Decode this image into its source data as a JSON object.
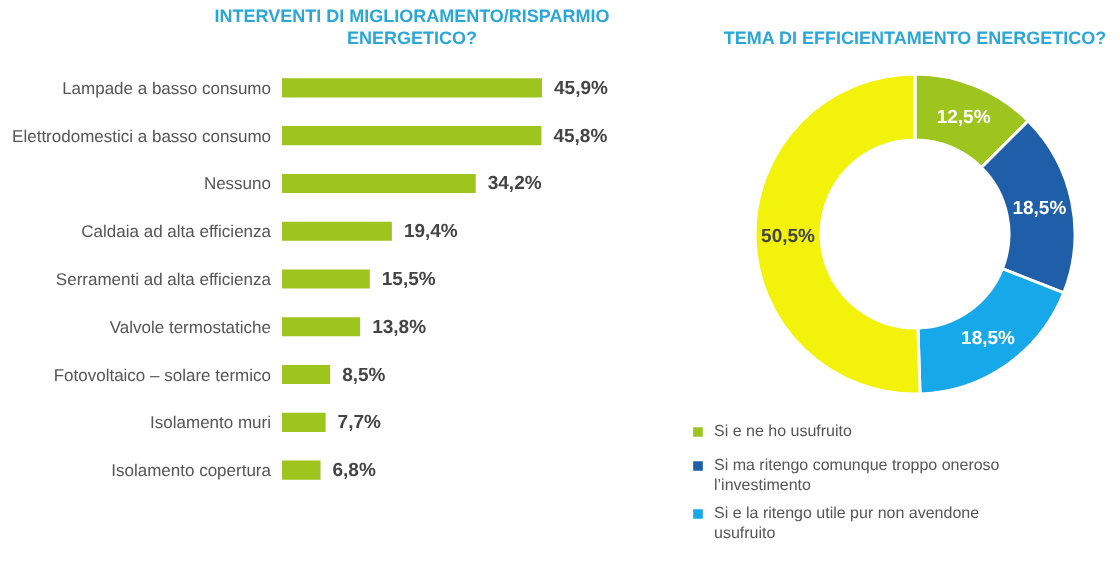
{
  "chart_data": [
    {
      "type": "bar",
      "orientation": "horizontal",
      "title": "INTERVENTI DI MIGLIORAMENTO/RISPARMIO ENERGETICO?",
      "categories": [
        "Lampade a basso consumo",
        "Elettrodomestici a basso consumo",
        "Nessuno",
        "Caldaia ad alta efficienza",
        "Serramenti ad alta efficienza",
        "Valvole termostatiche",
        "Fotovoltaico – solare termico",
        "Isolamento muri",
        "Isolamento copertura"
      ],
      "values": [
        45.9,
        45.8,
        34.2,
        19.4,
        15.5,
        13.8,
        8.5,
        7.7,
        6.8
      ],
      "value_labels": [
        "45,9%",
        "45,8%",
        "34,2%",
        "19,4%",
        "15,5%",
        "13,8%",
        "8,5%",
        "7,7%",
        "6,8%"
      ],
      "color": "#9dc51e"
    },
    {
      "type": "donut",
      "title": "TEMA DI EFFICIENTAMENTO ENERGETICO?",
      "categories": [
        "Si e ne ho usufruito",
        "Si ma ritengo comunque troppo oneroso l’investimento",
        "Si e la ritengo utile pur non avendone usufruito",
        null
      ],
      "values": [
        12.5,
        18.5,
        18.5,
        50.5
      ],
      "value_labels": [
        "12,5%",
        "18,5%",
        "18,5%",
        "50,5%"
      ],
      "colors": [
        "#9dc51e",
        "#1f5ea8",
        "#16a8e8",
        "#f2f20a"
      ],
      "legend": "bottom"
    }
  ]
}
